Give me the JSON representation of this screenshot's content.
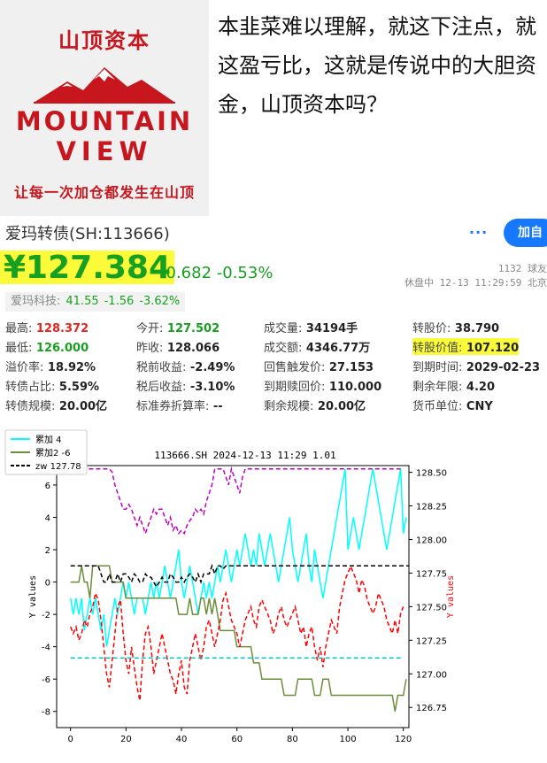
{
  "logo": {
    "brand_cn": "山顶资本",
    "word1": "MOUNTAIN",
    "word2": "VIEW",
    "slogan": "让每一次加仓都发生在山顶"
  },
  "headline": "本韭菜难以理解，就这下注点，就这盈亏比，这就是传说中的大胆资金，山顶资本吗？",
  "quote": {
    "name": "爱玛转债(SH:113666)",
    "more": "···",
    "add_button": "加自",
    "price": "¥127.384",
    "change": "-0.682 -0.53%",
    "followers": "1132 球友",
    "status": "休盘中 12-13 11:29:59 北京",
    "stock_name": "爱玛科技:",
    "stock_price": "41.55",
    "stock_change": "-1.56",
    "stock_pct": "-3.62%"
  },
  "stats": [
    [
      {
        "label": "最高:",
        "value": "128.372",
        "color": "red"
      },
      {
        "label": "今开:",
        "value": "127.502",
        "color": "green"
      },
      {
        "label": "成交量:",
        "value": "34194手"
      },
      {
        "label": "转股价:",
        "value": "38.790"
      }
    ],
    [
      {
        "label": "最低:",
        "value": "126.000",
        "color": "green"
      },
      {
        "label": "昨收:",
        "value": "128.066"
      },
      {
        "label": "成交额:",
        "value": "4346.77万"
      },
      {
        "label": "转股价值:",
        "value": "107.120",
        "hl": true
      }
    ],
    [
      {
        "label": "溢价率:",
        "value": "18.92%"
      },
      {
        "label": "税前收益:",
        "value": "-2.49%"
      },
      {
        "label": "回售触发价:",
        "value": "27.153"
      },
      {
        "label": "到期时间:",
        "value": "2029-02-23"
      }
    ],
    [
      {
        "label": "转债占比:",
        "value": "5.59%"
      },
      {
        "label": "税后收益:",
        "value": "-3.10%"
      },
      {
        "label": "到期赎回价:",
        "value": "110.000"
      },
      {
        "label": "剩余年限:",
        "value": "4.20"
      }
    ],
    [
      {
        "label": "转债规模:",
        "value": "20.00亿"
      },
      {
        "label": "标准券折算率:",
        "value": "--"
      },
      {
        "label": "剩余规模:",
        "value": "20.00亿"
      },
      {
        "label": "货币单位:",
        "value": "CNY"
      }
    ]
  ],
  "chart_data": {
    "type": "line",
    "title": "113666.SH 2024-12-13 11:29 1.01",
    "xlabel": "",
    "ylabel": "Y values",
    "ylabel_right": "Y values",
    "xlim": [
      -5,
      122
    ],
    "xticks": [
      0,
      20,
      40,
      60,
      80,
      100,
      120
    ],
    "ylim": [
      -9,
      7.2
    ],
    "yticks": [
      -8,
      -6,
      -4,
      -2,
      0,
      2,
      4,
      6
    ],
    "ylim_right": [
      126.6,
      128.55
    ],
    "yticks_right": [
      126.75,
      127.0,
      127.25,
      127.5,
      127.75,
      128.0,
      128.25,
      128.5
    ],
    "legend_position": "top-left",
    "legend": [
      "累加 4",
      "累加2 -6",
      "zw 127.78"
    ],
    "colors": {
      "cum1": "#00ffff",
      "cum2": "#6b8e3a",
      "zw": "#000000",
      "red": "#ff0000",
      "magenta": "#c000c0",
      "cyan_ref": "#00c0c0"
    },
    "series": [
      {
        "name": "累加 4",
        "axis": "left",
        "style": "solid",
        "color": "#00ffff",
        "values": [
          -1,
          -2,
          -1,
          -2,
          -1,
          -3,
          -2,
          -1,
          -2,
          -1,
          -2,
          -3,
          -2,
          -4,
          -3,
          -2,
          -1,
          -2,
          -1,
          0,
          -1,
          0,
          -1,
          -2,
          -1,
          -1,
          -1,
          -2,
          -1,
          0,
          -1,
          0,
          -1,
          0,
          1,
          0,
          -1,
          0,
          1,
          2,
          0,
          -1,
          0,
          1,
          0,
          -1,
          -2,
          -1,
          0,
          -1,
          0,
          -1,
          0,
          1,
          0,
          1,
          2,
          1,
          0,
          1,
          2,
          1,
          2,
          3,
          2,
          1,
          2,
          1,
          3,
          2,
          1,
          2,
          3,
          2,
          1,
          0,
          1,
          2,
          3,
          4,
          2,
          1,
          0,
          1,
          2,
          3,
          1,
          0,
          2,
          1,
          0,
          -1,
          0,
          1,
          2,
          3,
          4,
          5,
          6,
          7,
          2,
          3,
          4,
          3,
          2,
          3,
          4,
          5,
          6,
          7,
          6,
          5,
          4,
          3,
          2,
          3,
          4,
          5,
          6,
          7,
          3,
          4
        ]
      },
      {
        "name": "累加2 -6",
        "axis": "left",
        "style": "solid",
        "color": "#6b8e3a",
        "values": [
          0,
          0,
          0,
          0,
          1,
          0,
          0,
          -1,
          1,
          1,
          1,
          1,
          1,
          1,
          1,
          0,
          0,
          0,
          0,
          0,
          -1,
          -1,
          -1,
          -1,
          -1,
          -1,
          -1,
          -1,
          -1,
          -1,
          -1,
          -1,
          -1,
          -1,
          -1,
          -1,
          -1,
          -1,
          -1,
          -2,
          -2,
          -2,
          -2,
          -1,
          -2,
          -2,
          -2,
          -1,
          -1,
          -2,
          -1,
          -2,
          -1,
          -2,
          -3,
          -3,
          -3,
          -3,
          -3,
          -3,
          -4,
          -4,
          -4,
          -4,
          -4,
          -4,
          -5,
          -5,
          -5,
          -6,
          -6,
          -6,
          -6,
          -6,
          -6,
          -6,
          -6,
          -7,
          -7,
          -7,
          -7,
          -7,
          -6,
          -6,
          -6,
          -6,
          -6,
          -6,
          -7,
          -7,
          -7,
          -6,
          -6,
          -6,
          -7,
          -7,
          -7,
          -7,
          -7,
          -7,
          -7,
          -7,
          -7,
          -7,
          -7,
          -7,
          -7,
          -7,
          -7,
          -7,
          -7,
          -7,
          -7,
          -7,
          -7,
          -7,
          -7,
          -8,
          -7,
          -7,
          -7,
          -6
        ]
      },
      {
        "name": "zw 127.78",
        "axis": "left",
        "style": "dashed",
        "color": "#000000",
        "values": [
          1,
          1,
          1,
          1,
          1,
          1,
          1,
          1,
          1,
          1,
          1,
          0.5,
          0,
          0,
          0.5,
          0,
          0,
          0.5,
          0,
          0.5,
          0.5,
          0.3,
          0,
          0.5,
          0.3,
          0,
          0,
          0.5,
          0.3,
          0.3,
          0,
          -0.3,
          0,
          0.3,
          0,
          0,
          0.5,
          0.3,
          0,
          0,
          0.3,
          0,
          0.3,
          0.5,
          0.3,
          0,
          0.5,
          0,
          0.5,
          0.5,
          0.5,
          1,
          0.5,
          1,
          1,
          0.8,
          1,
          1,
          1,
          1,
          1,
          1,
          1,
          1,
          1,
          1,
          1,
          1,
          1,
          1,
          1,
          1,
          1,
          1,
          1,
          1,
          1,
          1,
          1,
          1,
          1,
          1,
          1,
          1,
          1,
          1,
          1,
          1,
          1,
          1,
          1,
          1,
          1,
          1,
          1,
          1,
          1,
          1,
          1,
          1,
          1,
          1,
          1,
          1,
          1,
          1,
          1,
          1,
          1,
          1,
          1,
          1,
          1,
          1,
          1,
          1,
          1,
          1,
          1,
          1,
          1,
          1,
          1
        ]
      },
      {
        "name": "",
        "axis": "right",
        "style": "dashed",
        "color": "#ff0000",
        "values": [
          127.35,
          127.3,
          127.35,
          127.25,
          127.3,
          127.4,
          127.35,
          127.45,
          127.5,
          127.6,
          127.55,
          127.4,
          127.2,
          127.0,
          126.9,
          127.1,
          127.3,
          127.5,
          127.55,
          127.3,
          127.1,
          127.0,
          127.2,
          127.05,
          126.9,
          126.8,
          127.1,
          127.3,
          127.35,
          127.2,
          127.0,
          127.1,
          127.2,
          127.3,
          127.2,
          127.1,
          127.0,
          126.95,
          126.85,
          127.0,
          127.1,
          126.9,
          126.85,
          127.1,
          127.2,
          127.3,
          127.2,
          127.1,
          127.2,
          127.35,
          127.4,
          127.3,
          127.2,
          127.3,
          127.4,
          127.55,
          127.6,
          127.5,
          127.4,
          127.35,
          127.3,
          127.2,
          127.3,
          127.4,
          127.45,
          127.5,
          127.4,
          127.35,
          127.5,
          127.55,
          127.5,
          127.45,
          127.4,
          127.3,
          127.35,
          127.45,
          127.5,
          127.4,
          127.35,
          127.4,
          127.45,
          127.5,
          127.4,
          127.3,
          127.35,
          127.2,
          127.3,
          127.35,
          127.2,
          127.1,
          127.2,
          127.05,
          127.2,
          127.3,
          127.4,
          127.35,
          127.3,
          127.5,
          127.6,
          127.7,
          127.75,
          127.8,
          127.75,
          127.7,
          127.6,
          127.7,
          127.65,
          127.55,
          127.5,
          127.45,
          127.5,
          127.6,
          127.55,
          127.5,
          127.4,
          127.35,
          127.3,
          127.4,
          127.3,
          127.45,
          127.5
        ]
      },
      {
        "name": "",
        "axis": "left",
        "style": "dashed",
        "color": "#c000c0",
        "values": [
          7,
          6.8,
          7,
          7,
          7,
          7,
          7,
          7,
          7,
          7,
          7,
          7,
          7,
          7,
          7,
          6.8,
          6,
          5.5,
          5,
          4.5,
          4.5,
          4.8,
          4.5,
          4,
          3.5,
          4,
          3.5,
          3,
          3.5,
          4,
          4.5,
          4.2,
          4.5,
          4.5,
          4,
          3.5,
          4,
          3.2,
          3.5,
          3,
          3.2,
          3,
          3.5,
          3.8,
          4,
          4.5,
          4.3,
          4.5,
          4.2,
          5,
          5.5,
          6,
          7,
          7,
          7,
          7,
          6.5,
          6,
          7,
          6.5,
          6,
          5.5,
          6.5,
          7,
          7,
          7,
          7,
          7,
          7,
          7,
          7,
          7,
          7,
          7,
          7,
          7,
          7,
          7,
          7,
          7,
          7,
          7,
          7,
          7,
          7,
          7,
          7,
          7,
          7,
          7,
          7,
          7,
          7,
          7,
          7,
          7,
          7,
          7,
          7,
          7,
          7,
          7,
          7,
          7,
          7,
          7,
          7,
          7,
          7,
          7,
          7,
          7,
          7,
          7,
          7,
          7,
          7,
          7,
          7,
          7,
          7
        ]
      },
      {
        "name": "",
        "axis": "left",
        "style": "dashed",
        "color": "#00c0c0",
        "values_const": -4.7
      }
    ]
  }
}
